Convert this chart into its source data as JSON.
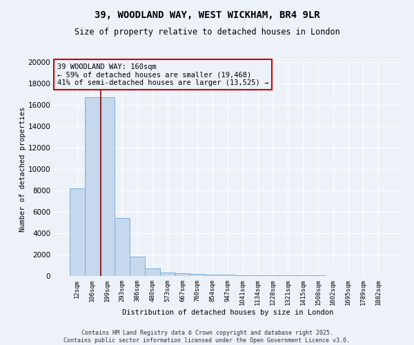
{
  "title": "39, WOODLAND WAY, WEST WICKHAM, BR4 9LR",
  "subtitle": "Size of property relative to detached houses in London",
  "xlabel": "Distribution of detached houses by size in London",
  "ylabel": "Number of detached properties",
  "bar_color": "#c5d8ed",
  "bar_edge_color": "#7aafd4",
  "categories": [
    "12sqm",
    "106sqm",
    "199sqm",
    "293sqm",
    "386sqm",
    "480sqm",
    "573sqm",
    "667sqm",
    "760sqm",
    "854sqm",
    "947sqm",
    "1041sqm",
    "1134sqm",
    "1228sqm",
    "1321sqm",
    "1415sqm",
    "1508sqm",
    "1602sqm",
    "1695sqm",
    "1789sqm",
    "1882sqm"
  ],
  "values": [
    8200,
    16700,
    16700,
    5400,
    1800,
    700,
    350,
    270,
    200,
    150,
    110,
    90,
    70,
    60,
    50,
    40,
    35,
    30,
    25,
    20,
    15
  ],
  "ylim": [
    0,
    20000
  ],
  "yticks": [
    0,
    2000,
    4000,
    6000,
    8000,
    10000,
    12000,
    14000,
    16000,
    18000,
    20000
  ],
  "red_line_x": 1.55,
  "annotation_text": "39 WOODLAND WAY: 160sqm\n← 59% of detached houses are smaller (19,468)\n41% of semi-detached houses are larger (13,525) →",
  "footer_line1": "Contains HM Land Registry data © Crown copyright and database right 2025.",
  "footer_line2": "Contains public sector information licensed under the Open Government Licence v3.0.",
  "background_color": "#edf2f9",
  "grid_color": "#ffffff"
}
